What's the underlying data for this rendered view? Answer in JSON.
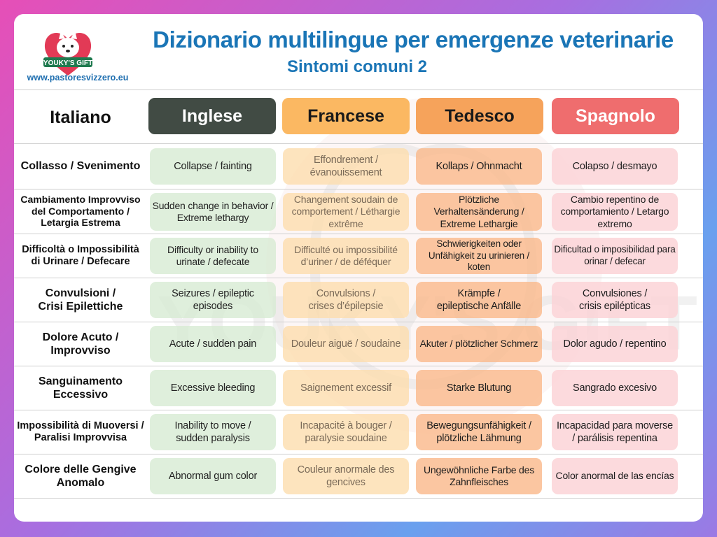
{
  "header": {
    "title": "Dizionario multilingue per emergenze veterinarie",
    "subtitle": "Sintomi comuni 2",
    "url": "www.pastoresvizzero.eu",
    "logo_text": "YOUKY'S GIFT",
    "watermark_text": "YOUKY'S GIFT"
  },
  "columns": {
    "it": "Italiano",
    "en": "Inglese",
    "fr": "Francese",
    "de": "Tedesco",
    "es": "Spagnolo"
  },
  "colors": {
    "title": "#1a75b6",
    "inglese": "#414b44",
    "francese": "#fbb862",
    "tedesco": "#f6a35b",
    "spagnolo": "#ef6d6e"
  },
  "rows": [
    {
      "it": "Collasso / Svenimento",
      "en": "Collapse / fainting",
      "fr": "Effondrement / évanouissement",
      "de": "Kollaps / Ohnmacht",
      "es": "Colapso / desmayo"
    },
    {
      "it": "Cambiamento Improvviso del Comportamento / Letargia Estrema",
      "en": "Sudden change in behavior / Extreme lethargy",
      "fr": "Changement soudain de comportement / Léthargie extrême",
      "de": "Plötzliche Verhaltensänderung / Extreme Lethargie",
      "es": "Cambio repentino de comportamiento / Letargo extremo"
    },
    {
      "it": "Difficoltà o Impossibilità di Urinare / Defecare",
      "en": "Difficulty or inability to urinate / defecate",
      "fr": "Difficulté ou impossibilité d’uriner / de déféquer",
      "de": "Schwierigkeiten oder Unfähigkeit zu urinieren / koten",
      "es": "Dificultad o imposibilidad para orinar / defecar"
    },
    {
      "it": "Convulsioni / Crisi Epilettiche",
      "en": "Seizures / epileptic episodes",
      "fr": "Convulsions / crises d’épilepsie",
      "de": "Krämpfe / epileptische Anfälle",
      "es": "Convulsiones / crisis epilépticas"
    },
    {
      "it": "Dolore Acuto / Improvviso",
      "en": "Acute / sudden pain",
      "fr": "Douleur aiguë / soudaine",
      "de": "Akuter / plötzlicher Schmerz",
      "es": "Dolor agudo / repentino"
    },
    {
      "it": "Sanguinamento Eccessivo",
      "en": "Excessive bleeding",
      "fr": "Saignement excessif",
      "de": "Starke Blutung",
      "es": "Sangrado excesivo"
    },
    {
      "it": "Impossibilità di Muoversi / Paralisi Improvvisa",
      "en": "Inability to move / sudden paralysis",
      "fr": "Incapacité à bouger / paralysie soudaine",
      "de": "Bewegungsunfähigkeit / plötzliche Lähmung",
      "es": "Incapacidad para moverse / parálisis repentina"
    },
    {
      "it": "Colore delle Gengive Anomalo",
      "en": "Abnormal gum color",
      "fr": "Couleur anormale des gencives",
      "de": "Ungewöhnliche Farbe des Zahnfleisches",
      "es": "Color anormal de las encías"
    }
  ]
}
